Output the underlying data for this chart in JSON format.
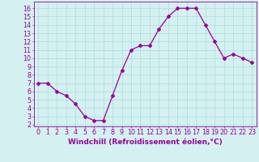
{
  "x": [
    0,
    1,
    2,
    3,
    4,
    5,
    6,
    7,
    8,
    9,
    10,
    11,
    12,
    13,
    14,
    15,
    16,
    17,
    18,
    19,
    20,
    21,
    22,
    23
  ],
  "y": [
    7,
    7,
    6,
    5.5,
    4.5,
    3,
    2.5,
    2.5,
    5.5,
    8.5,
    11,
    11.5,
    11.5,
    13.5,
    15,
    16,
    16,
    16,
    14,
    12,
    10,
    10.5,
    10,
    9.5
  ],
  "line_color": "#990099",
  "marker": "D",
  "marker_size": 2.0,
  "bg_color": "#d4f0f0",
  "grid_color": "#aadddd",
  "xlabel": "Windchill (Refroidissement éolien,°C)",
  "xlabel_fontsize": 6.5,
  "ylabel_ticks": [
    2,
    3,
    4,
    5,
    6,
    7,
    8,
    9,
    10,
    11,
    12,
    13,
    14,
    15,
    16
  ],
  "xlim": [
    -0.5,
    23.5
  ],
  "ylim": [
    1.8,
    16.8
  ],
  "tick_fontsize": 5.8,
  "linewidth": 0.9
}
